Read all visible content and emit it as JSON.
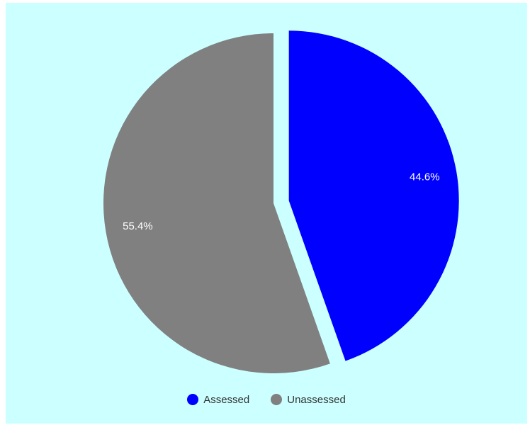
{
  "chart_data": {
    "type": "pie",
    "title": "",
    "start_angle_deg": 0,
    "exploded_slice": "Assessed",
    "legend_position": "bottom-center",
    "slices": [
      {
        "name": "Assessed",
        "value": 44.6,
        "label": "44.6%",
        "color": "#0000ff"
      },
      {
        "name": "Unassessed",
        "value": 55.4,
        "label": "55.4%",
        "color": "#808080"
      }
    ]
  },
  "colors": {
    "background": "#ccffff",
    "slice_label": "#ffffff",
    "legend_text": "#333333"
  }
}
